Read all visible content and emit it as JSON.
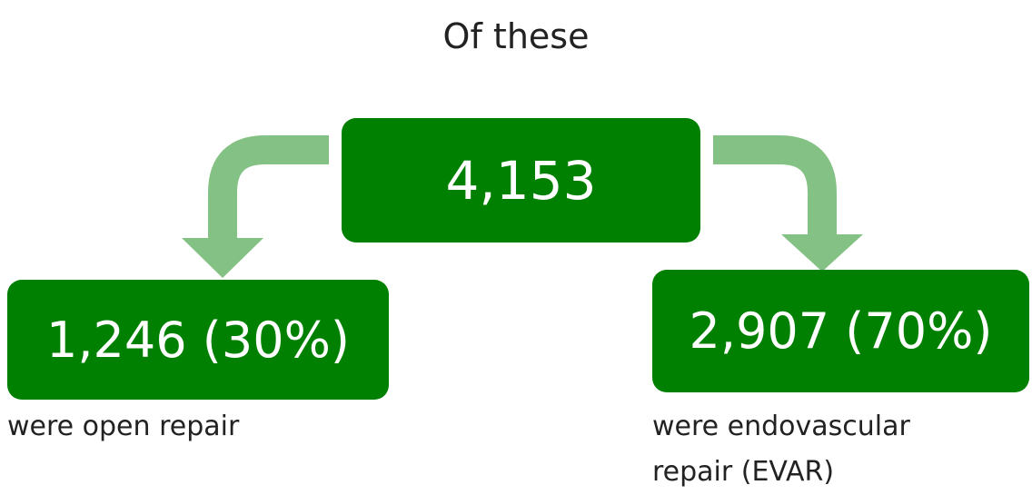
{
  "title": "Of these",
  "nodes": [
    {
      "label": "4,153"
    },
    {
      "label": "1,246 (30%)",
      "caption": [
        "were open repair"
      ]
    },
    {
      "label": "2,907 (70%)",
      "caption": [
        "were endovascular",
        "repair (EVAR)"
      ]
    }
  ]
}
